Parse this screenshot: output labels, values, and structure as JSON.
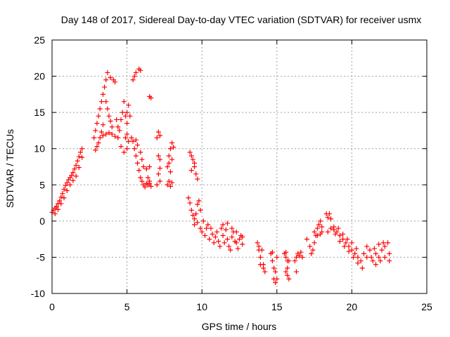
{
  "chart_data": {
    "type": "scatter",
    "title": "Day 148 of 2017, Sidereal Day-to-day VTEC variation (SDTVAR) for receiver usmx",
    "xlabel": "GPS time / hours",
    "ylabel": "SDTVAR / TECUs",
    "xlim": [
      0,
      25
    ],
    "ylim": [
      -10,
      25
    ],
    "xticks": [
      0,
      5,
      10,
      15,
      20,
      25
    ],
    "yticks": [
      -10,
      -5,
      0,
      5,
      10,
      15,
      20,
      25
    ],
    "xtick_labels": [
      "0",
      "5",
      "10",
      "15",
      "20",
      "25"
    ],
    "ytick_labels": [
      "-10",
      "-5",
      "0",
      "5",
      "10",
      "15",
      "20",
      "25"
    ],
    "grid": true,
    "marker": "+",
    "color": "#ff0000",
    "series": [
      {
        "name": "SDTVAR",
        "points": [
          [
            0.0,
            1.2
          ],
          [
            0.1,
            1.5
          ],
          [
            0.2,
            1.8
          ],
          [
            0.3,
            2.0
          ],
          [
            0.4,
            2.4
          ],
          [
            0.5,
            2.8
          ],
          [
            0.6,
            3.3
          ],
          [
            0.7,
            3.8
          ],
          [
            0.8,
            4.4
          ],
          [
            0.9,
            4.9
          ],
          [
            1.0,
            5.3
          ],
          [
            1.1,
            5.7
          ],
          [
            1.2,
            6.0
          ],
          [
            1.3,
            6.3
          ],
          [
            1.4,
            6.7
          ],
          [
            1.5,
            7.2
          ],
          [
            1.6,
            7.7
          ],
          [
            1.7,
            8.3
          ],
          [
            1.8,
            8.9
          ],
          [
            1.9,
            9.5
          ],
          [
            2.0,
            10.0
          ],
          [
            0.2,
            1.0
          ],
          [
            0.4,
            1.6
          ],
          [
            0.6,
            2.4
          ],
          [
            0.8,
            3.2
          ],
          [
            1.0,
            4.2
          ],
          [
            1.2,
            5.0
          ],
          [
            1.4,
            5.6
          ],
          [
            1.6,
            6.2
          ],
          [
            1.8,
            7.4
          ],
          [
            2.0,
            8.8
          ],
          [
            2.8,
            11.5
          ],
          [
            2.9,
            12.5
          ],
          [
            3.0,
            13.5
          ],
          [
            3.1,
            14.5
          ],
          [
            3.2,
            15.5
          ],
          [
            3.3,
            16.5
          ],
          [
            3.4,
            17.5
          ],
          [
            3.5,
            18.5
          ],
          [
            3.6,
            19.5
          ],
          [
            3.7,
            20.5
          ],
          [
            2.9,
            9.8
          ],
          [
            3.0,
            10.3
          ],
          [
            3.1,
            10.8
          ],
          [
            3.2,
            11.5
          ],
          [
            3.3,
            12.3
          ],
          [
            3.4,
            13.3
          ],
          [
            3.4,
            11.8
          ],
          [
            3.6,
            12.0
          ],
          [
            3.8,
            12.2
          ],
          [
            4.0,
            12.0
          ],
          [
            4.2,
            11.7
          ],
          [
            4.4,
            11.5
          ],
          [
            3.6,
            16.5
          ],
          [
            3.7,
            15.5
          ],
          [
            3.8,
            14.5
          ],
          [
            3.9,
            13.8
          ],
          [
            4.0,
            13.0
          ],
          [
            3.9,
            19.8
          ],
          [
            4.1,
            19.5
          ],
          [
            4.2,
            19.2
          ],
          [
            4.3,
            14.0
          ],
          [
            4.4,
            13.0
          ],
          [
            4.5,
            12.5
          ],
          [
            4.6,
            14.0
          ],
          [
            4.7,
            15.0
          ],
          [
            4.8,
            16.5
          ],
          [
            4.9,
            14.5
          ],
          [
            5.0,
            13.5
          ],
          [
            5.0,
            12.0
          ],
          [
            5.1,
            11.0
          ],
          [
            5.0,
            10.0
          ],
          [
            4.8,
            9.5
          ],
          [
            4.6,
            10.3
          ],
          [
            4.9,
            11.5
          ],
          [
            5.0,
            15.0
          ],
          [
            5.1,
            16.0
          ],
          [
            5.2,
            14.5
          ],
          [
            5.4,
            19.5
          ],
          [
            5.5,
            20.0
          ],
          [
            5.6,
            20.5
          ],
          [
            5.8,
            21.0
          ],
          [
            5.9,
            20.8
          ],
          [
            5.3,
            11.5
          ],
          [
            5.4,
            11.0
          ],
          [
            5.5,
            10.0
          ],
          [
            5.6,
            9.0
          ],
          [
            5.7,
            8.0
          ],
          [
            5.8,
            7.0
          ],
          [
            5.9,
            6.0
          ],
          [
            6.0,
            5.5
          ],
          [
            6.1,
            5.0
          ],
          [
            6.2,
            4.7
          ],
          [
            6.3,
            5.2
          ],
          [
            6.4,
            5.0
          ],
          [
            6.5,
            5.5
          ],
          [
            5.6,
            11.2
          ],
          [
            5.7,
            10.5
          ],
          [
            5.9,
            9.5
          ],
          [
            6.0,
            8.5
          ],
          [
            6.1,
            7.5
          ],
          [
            6.3,
            7.2
          ],
          [
            6.5,
            7.5
          ],
          [
            6.5,
            17.2
          ],
          [
            6.6,
            17.0
          ],
          [
            6.4,
            6.0
          ],
          [
            6.5,
            5.2
          ],
          [
            6.6,
            4.8
          ],
          [
            7.0,
            11.5
          ],
          [
            7.1,
            12.3
          ],
          [
            7.2,
            11.8
          ],
          [
            7.1,
            9.0
          ],
          [
            7.2,
            8.5
          ],
          [
            7.1,
            6.5
          ],
          [
            7.2,
            7.3
          ],
          [
            7.0,
            5.0
          ],
          [
            7.2,
            5.5
          ],
          [
            7.7,
            5.0
          ],
          [
            7.8,
            5.5
          ],
          [
            7.9,
            4.8
          ],
          [
            8.0,
            5.3
          ],
          [
            7.8,
            9.0
          ],
          [
            7.9,
            10.0
          ],
          [
            8.0,
            10.8
          ],
          [
            8.1,
            10.2
          ],
          [
            8.0,
            8.5
          ],
          [
            7.7,
            7.5
          ],
          [
            7.8,
            8.0
          ],
          [
            7.9,
            6.8
          ],
          [
            9.2,
            9.5
          ],
          [
            9.3,
            9.0
          ],
          [
            9.4,
            8.5
          ],
          [
            9.5,
            7.5
          ],
          [
            9.6,
            6.5
          ],
          [
            9.7,
            5.8
          ],
          [
            9.5,
            8.0
          ],
          [
            9.3,
            7.0
          ],
          [
            9.1,
            3.2
          ],
          [
            9.2,
            2.5
          ],
          [
            9.3,
            1.5
          ],
          [
            9.4,
            0.8
          ],
          [
            9.5,
            0.3
          ],
          [
            9.6,
            1.0
          ],
          [
            9.7,
            2.3
          ],
          [
            9.8,
            2.8
          ],
          [
            9.9,
            1.5
          ],
          [
            9.5,
            -0.5
          ],
          [
            9.7,
            -0.2
          ],
          [
            9.9,
            -1.0
          ],
          [
            10.0,
            -1.5
          ],
          [
            10.1,
            0.0
          ],
          [
            10.2,
            -2.0
          ],
          [
            10.3,
            -1.0
          ],
          [
            10.4,
            -0.5
          ],
          [
            10.5,
            -2.5
          ],
          [
            10.6,
            -1.0
          ],
          [
            10.7,
            -1.8
          ],
          [
            10.8,
            -3.0
          ],
          [
            10.9,
            -2.2
          ],
          [
            11.0,
            -1.5
          ],
          [
            11.1,
            -2.8
          ],
          [
            11.2,
            -3.5
          ],
          [
            11.3,
            -1.0
          ],
          [
            11.4,
            -2.0
          ],
          [
            11.5,
            -3.0
          ],
          [
            11.6,
            -1.2
          ],
          [
            11.7,
            -2.5
          ],
          [
            11.8,
            -3.5
          ],
          [
            11.9,
            -4.0
          ],
          [
            12.0,
            -2.2
          ],
          [
            12.1,
            -1.5
          ],
          [
            12.2,
            -2.8
          ],
          [
            12.3,
            -3.0
          ],
          [
            12.4,
            -3.8
          ],
          [
            12.5,
            -2.5
          ],
          [
            12.6,
            -2.0
          ],
          [
            12.7,
            -3.2
          ],
          [
            11.4,
            -0.5
          ],
          [
            11.7,
            -0.3
          ],
          [
            12.0,
            -1.0
          ],
          [
            12.3,
            -1.5
          ],
          [
            12.7,
            -2.2
          ],
          [
            13.7,
            -3.0
          ],
          [
            13.8,
            -4.0
          ],
          [
            13.9,
            -5.0
          ],
          [
            14.0,
            -4.0
          ],
          [
            14.1,
            -6.0
          ],
          [
            14.2,
            -7.0
          ],
          [
            14.1,
            -6.5
          ],
          [
            13.9,
            -6.0
          ],
          [
            13.8,
            -3.5
          ],
          [
            14.6,
            -4.5
          ],
          [
            14.7,
            -5.5
          ],
          [
            14.8,
            -6.5
          ],
          [
            14.9,
            -7.0
          ],
          [
            14.8,
            -8.0
          ],
          [
            14.9,
            -8.5
          ],
          [
            15.0,
            -8.0
          ],
          [
            14.7,
            -4.3
          ],
          [
            15.0,
            -5.0
          ],
          [
            15.5,
            -4.5
          ],
          [
            15.6,
            -5.0
          ],
          [
            15.7,
            -5.5
          ],
          [
            15.8,
            -5.5
          ],
          [
            15.7,
            -6.5
          ],
          [
            15.6,
            -7.0
          ],
          [
            15.7,
            -7.5
          ],
          [
            15.8,
            -8.0
          ],
          [
            15.6,
            -4.3
          ],
          [
            16.2,
            -5.5
          ],
          [
            16.3,
            -5.0
          ],
          [
            16.4,
            -4.5
          ],
          [
            16.5,
            -4.8
          ],
          [
            16.6,
            -4.3
          ],
          [
            16.7,
            -5.0
          ],
          [
            16.3,
            -7.0
          ],
          [
            17.0,
            -2.5
          ],
          [
            17.2,
            -3.5
          ],
          [
            17.3,
            -4.5
          ],
          [
            17.4,
            -4.0
          ],
          [
            17.5,
            -3.0
          ],
          [
            17.6,
            -2.0
          ],
          [
            17.7,
            -1.0
          ],
          [
            17.8,
            -0.5
          ],
          [
            17.9,
            0.0
          ],
          [
            18.0,
            -0.8
          ],
          [
            17.5,
            -1.5
          ],
          [
            17.7,
            -2.0
          ],
          [
            17.9,
            -1.8
          ],
          [
            18.0,
            -1.5
          ],
          [
            18.3,
            1.0
          ],
          [
            18.4,
            0.5
          ],
          [
            18.5,
            1.0
          ],
          [
            18.6,
            0.3
          ],
          [
            18.4,
            -1.5
          ],
          [
            18.6,
            -1.0
          ],
          [
            18.8,
            -1.2
          ],
          [
            19.0,
            -1.5
          ],
          [
            19.2,
            -2.0
          ],
          [
            19.4,
            -2.5
          ],
          [
            19.6,
            -3.0
          ],
          [
            19.8,
            -3.5
          ],
          [
            20.0,
            -4.0
          ],
          [
            20.2,
            -4.5
          ],
          [
            20.4,
            -5.0
          ],
          [
            20.6,
            -5.5
          ],
          [
            20.7,
            -6.5
          ],
          [
            18.8,
            -0.8
          ],
          [
            19.1,
            -1.0
          ],
          [
            19.4,
            -1.8
          ],
          [
            19.7,
            -2.5
          ],
          [
            20.0,
            -3.0
          ],
          [
            20.3,
            -3.8
          ],
          [
            18.9,
            -1.8
          ],
          [
            19.2,
            -2.8
          ],
          [
            19.5,
            -3.5
          ],
          [
            19.8,
            -4.2
          ],
          [
            20.1,
            -5.0
          ],
          [
            20.4,
            -5.8
          ],
          [
            20.8,
            -4.5
          ],
          [
            21.0,
            -5.0
          ],
          [
            21.2,
            -4.0
          ],
          [
            21.4,
            -5.5
          ],
          [
            21.6,
            -6.0
          ],
          [
            21.8,
            -5.0
          ],
          [
            22.0,
            -4.0
          ],
          [
            22.2,
            -3.5
          ],
          [
            22.4,
            -3.0
          ],
          [
            22.5,
            -4.5
          ],
          [
            21.0,
            -3.5
          ],
          [
            21.3,
            -5.0
          ],
          [
            21.6,
            -4.5
          ],
          [
            21.9,
            -5.5
          ],
          [
            22.2,
            -5.0
          ],
          [
            22.5,
            -5.5
          ],
          [
            21.5,
            -3.8
          ],
          [
            21.8,
            -3.2
          ],
          [
            22.1,
            -3.0
          ]
        ]
      }
    ]
  }
}
